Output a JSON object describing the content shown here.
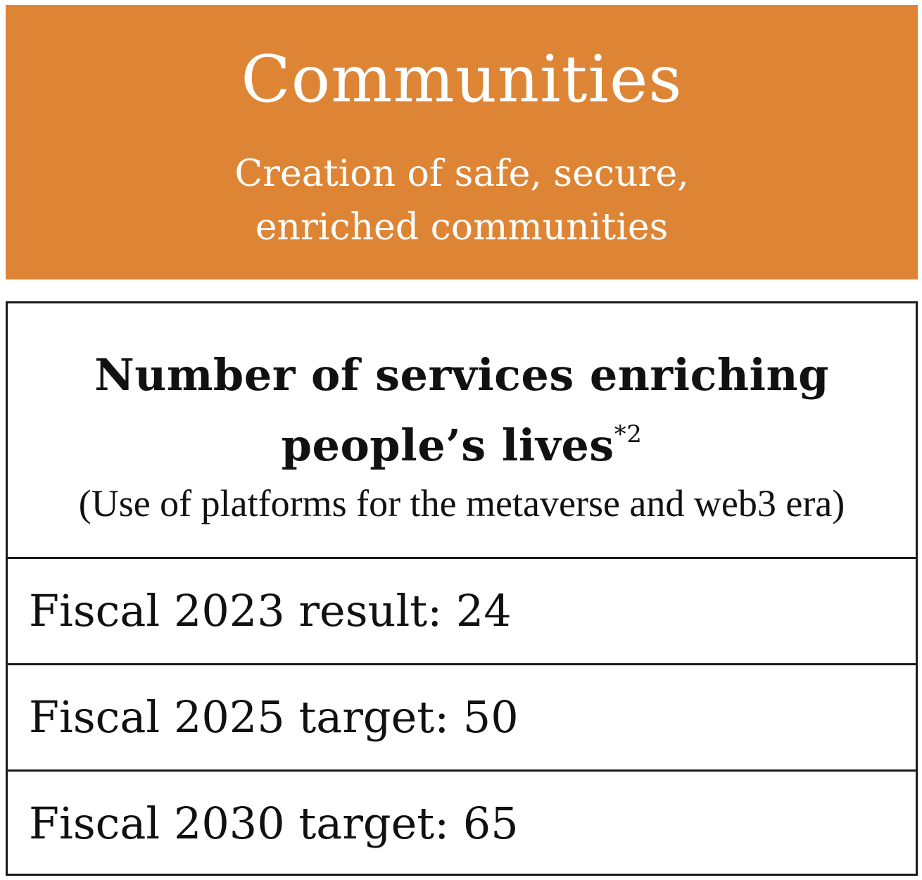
{
  "banner": {
    "title": "Communities",
    "subtitle_line1": "Creation of safe, secure,",
    "subtitle_line2": "enriched communities",
    "background_color": "#de8535"
  },
  "kpi": {
    "title_line1": "Number of services enriching",
    "title_line2": "people’s lives",
    "footnote_marker": "*2",
    "note": "(Use of platforms for the metaverse and web3 era)",
    "rows": [
      "Fiscal 2023 result: 24",
      "Fiscal 2025 target: 50",
      "Fiscal 2030 target: 65"
    ]
  }
}
